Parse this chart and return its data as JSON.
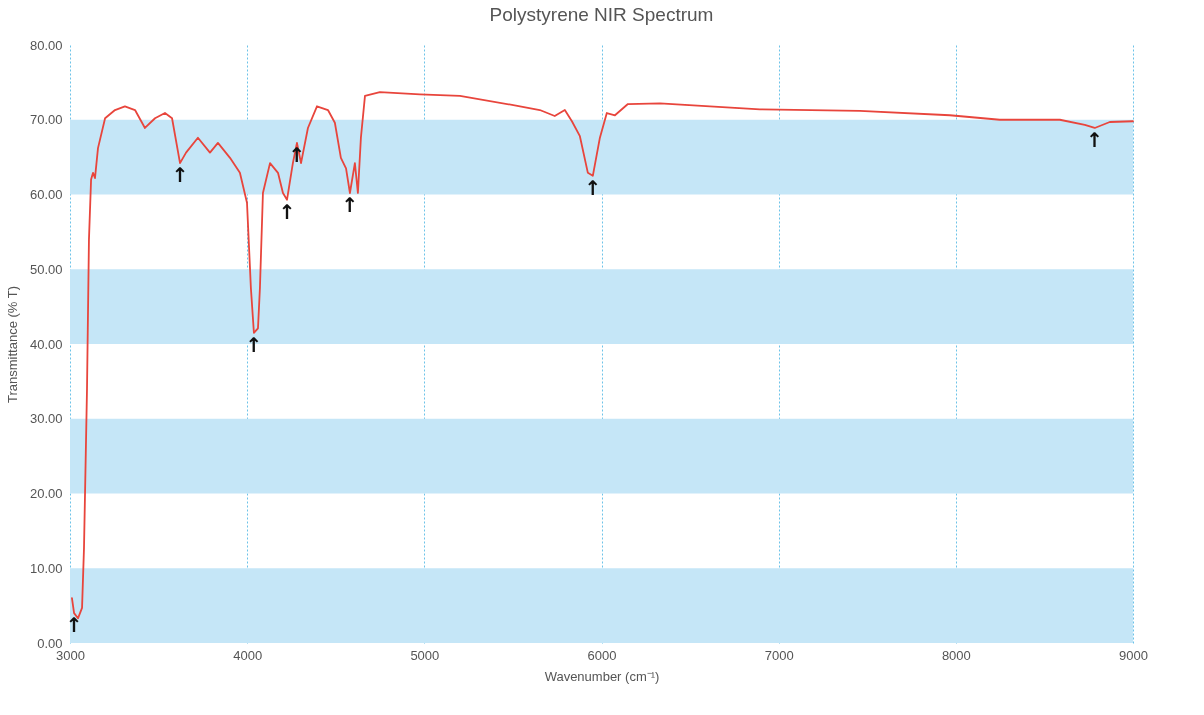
{
  "chart_data": {
    "type": "line",
    "title": "Polystyrene NIR Spectrum",
    "xlabel": "Wavenumber (cm⁻¹)",
    "ylabel": "Transmittance (% T)",
    "x": [
      3011,
      3023,
      3045,
      3068,
      3079,
      3096,
      3107,
      3119,
      3130,
      3141,
      3158,
      3198,
      3254,
      3310,
      3367,
      3423,
      3480,
      3536,
      3576,
      3621,
      3655,
      3722,
      3790,
      3835,
      3903,
      3959,
      3999,
      4021,
      4038,
      4061,
      4072,
      4089,
      4129,
      4174,
      4202,
      4225,
      4258,
      4281,
      4304,
      4343,
      4394,
      4456,
      4495,
      4529,
      4558,
      4580,
      4608,
      4625,
      4642,
      4665,
      4749,
      4975,
      5201,
      5540,
      5652,
      5736,
      5793,
      5833,
      5878,
      5923,
      5951,
      5991,
      6030,
      6076,
      6149,
      6330,
      6894,
      7458,
      7966,
      8248,
      8587,
      8728,
      8784,
      8869,
      9000
    ],
    "series": [
      {
        "color": "#e8453c",
        "values": [
          6.0,
          4.0,
          3.3,
          4.7,
          12.7,
          34,
          54,
          62,
          62.9,
          62.2,
          66.2,
          70.2,
          71.3,
          71.8,
          71.3,
          68.9,
          70.2,
          70.9,
          70.2,
          64.2,
          65.6,
          67.6,
          65.6,
          66.9,
          64.9,
          62.9,
          58.9,
          47.5,
          41.5,
          42.1,
          47.5,
          60.2,
          64.2,
          62.9,
          60.2,
          59.3,
          64.2,
          66.9,
          64.2,
          68.9,
          71.8,
          71.3,
          69.6,
          64.9,
          63.5,
          60.2,
          64.2,
          60.2,
          67.6,
          73.2,
          73.7,
          73.4,
          73.2,
          71.8,
          71.3,
          70.5,
          71.3,
          69.8,
          67.8,
          62.9,
          62.5,
          67.6,
          70.9,
          70.6,
          72.1,
          72.2,
          71.4,
          71.2,
          70.6,
          70.0,
          70.0,
          69.3,
          68.9,
          69.7,
          69.8
        ]
      }
    ],
    "xlim": [
      3000,
      9000
    ],
    "xticks": [
      3000,
      4000,
      5000,
      6000,
      7000,
      8000,
      9000
    ],
    "ylim": [
      0,
      80
    ],
    "yticks": [
      {
        "value": 0,
        "label": "0.00"
      },
      {
        "value": 10,
        "label": "10.00"
      },
      {
        "value": 20,
        "label": "20.00"
      },
      {
        "value": 30,
        "label": "30.00"
      },
      {
        "value": 40,
        "label": "40.00"
      },
      {
        "value": 50,
        "label": "50.00"
      },
      {
        "value": 60,
        "label": "60.00"
      },
      {
        "value": 70,
        "label": "70.00"
      },
      {
        "value": 80,
        "label": "80.00"
      }
    ],
    "grid": "x",
    "line_style": "solid",
    "bands": [
      {
        "axis": "y",
        "from": 0,
        "to": 10,
        "color": "#c5e6f7"
      },
      {
        "axis": "y",
        "from": 20,
        "to": 30,
        "color": "#c5e6f7"
      },
      {
        "axis": "y",
        "from": 40,
        "to": 50,
        "color": "#c5e6f7"
      },
      {
        "axis": "y",
        "from": 60,
        "to": 70,
        "color": "#c5e6f7"
      }
    ],
    "annotations": [
      {
        "text": "↑",
        "x": 3023,
        "y": 4.0
      },
      {
        "text": "↑",
        "x": 3621,
        "y": 64.2
      },
      {
        "text": "↑",
        "x": 4038,
        "y": 41.5
      },
      {
        "text": "↑",
        "x": 4225,
        "y": 59.3
      },
      {
        "text": "↑",
        "x": 4281,
        "y": 66.9
      },
      {
        "text": "↑",
        "x": 4580,
        "y": 60.2
      },
      {
        "text": "↑",
        "x": 5951,
        "y": 62.5
      },
      {
        "text": "↑",
        "x": 8784,
        "y": 68.9
      }
    ]
  }
}
